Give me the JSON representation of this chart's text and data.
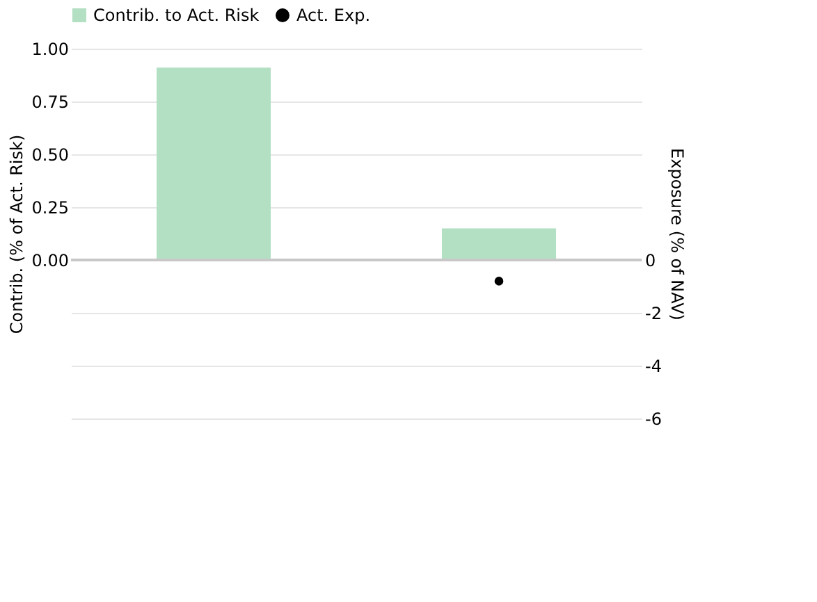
{
  "chart_data": {
    "type": "bar",
    "categories": [
      null,
      null
    ],
    "series": [
      {
        "name": "Contrib. to Act. Risk",
        "color": "#b3dfc3",
        "values": [
          0.91,
          0.15
        ]
      },
      {
        "name": "Act. Exp.",
        "type": "scatter",
        "axis": "y2",
        "color": "#000000",
        "values": [
          null,
          -0.8
        ]
      }
    ],
    "ylabel": "Contrib. (% of Act. Risk)",
    "y2label": "Exposure (% of NAV)",
    "ylim": [
      -0.75,
      1.0
    ],
    "yticks": [
      {
        "value": 0,
        "label": "0.00"
      },
      0.25,
      {
        "value": 0.5,
        "label": "0.50"
      },
      0.75,
      {
        "value": 1.0,
        "label": "1.00"
      }
    ],
    "y2lim": [
      -6,
      8
    ],
    "y2ticks": [
      -6,
      -4,
      -2,
      0
    ],
    "grid": true,
    "legend": "top",
    "marker": "circle"
  }
}
